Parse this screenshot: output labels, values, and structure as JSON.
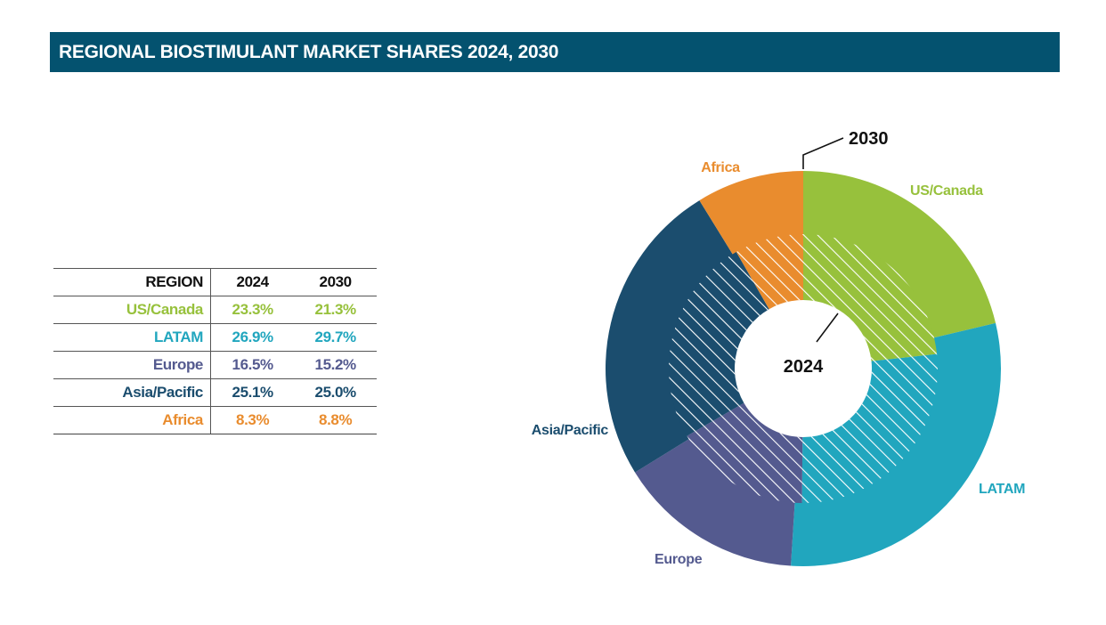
{
  "title": "REGIONAL BIOSTIMULANT MARKET SHARES 2024, 2030",
  "table": {
    "headers": [
      "REGION",
      "2024",
      "2030"
    ],
    "rows": [
      {
        "region": "US/Canada",
        "v2024": "23.3%",
        "v2030": "21.3%",
        "color": "#97c13c"
      },
      {
        "region": "LATAM",
        "v2024": "26.9%",
        "v2030": "29.7%",
        "color": "#21a6be"
      },
      {
        "region": "Europe",
        "v2024": "16.5%",
        "v2030": "15.2%",
        "color": "#545a8f"
      },
      {
        "region": "Asia/Pacific",
        "v2024": "25.1%",
        "v2030": "25.0%",
        "color": "#1b4d6e"
      },
      {
        "region": "Africa",
        "v2024": "8.3%",
        "v2030": "8.8%",
        "color": "#e98c2e"
      }
    ]
  },
  "chart_data": {
    "type": "pie",
    "subtype": "nested-donut",
    "title": "REGIONAL BIOSTIMULANT MARKET SHARES 2024, 2030",
    "categories": [
      "US/Canada",
      "LATAM",
      "Europe",
      "Asia/Pacific",
      "Africa"
    ],
    "colors": [
      "#97c13c",
      "#21a6be",
      "#545a8f",
      "#1b4d6e",
      "#e98c2e"
    ],
    "series": [
      {
        "name": "2024",
        "ring": "inner",
        "values": [
          23.3,
          26.9,
          16.5,
          25.1,
          8.3
        ]
      },
      {
        "name": "2030",
        "ring": "outer",
        "values": [
          21.3,
          29.7,
          15.2,
          25.0,
          8.8
        ]
      }
    ],
    "ring_labels": {
      "inner": "2024",
      "outer": "2030"
    },
    "unit": "%"
  }
}
